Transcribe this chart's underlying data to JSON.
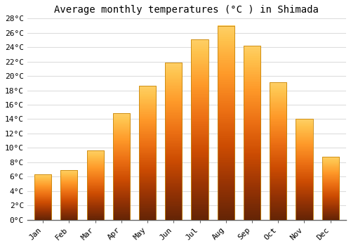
{
  "title": "Average monthly temperatures (°C ) in Shimada",
  "months": [
    "Jan",
    "Feb",
    "Mar",
    "Apr",
    "May",
    "Jun",
    "Jul",
    "Aug",
    "Sep",
    "Oct",
    "Nov",
    "Dec"
  ],
  "temperatures": [
    6.3,
    6.9,
    9.6,
    14.8,
    18.6,
    21.9,
    25.1,
    27.0,
    24.2,
    19.1,
    14.0,
    8.8
  ],
  "bar_color": "#FFAA00",
  "bar_edge_color": "#CC8800",
  "ylim": [
    0,
    28
  ],
  "yticks": [
    0,
    2,
    4,
    6,
    8,
    10,
    12,
    14,
    16,
    18,
    20,
    22,
    24,
    26,
    28
  ],
  "background_color": "#FFFFFF",
  "grid_color": "#DDDDDD",
  "title_fontsize": 10,
  "tick_fontsize": 8,
  "font_family": "monospace"
}
